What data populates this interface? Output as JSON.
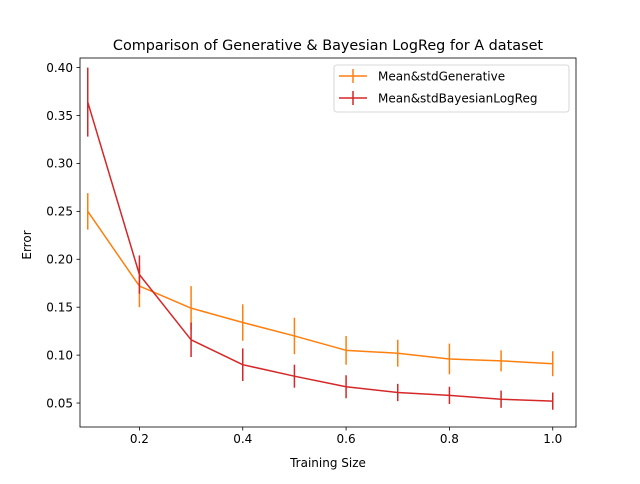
{
  "chart_data": {
    "type": "line",
    "title": "Comparison of Generative & Bayesian LogReg for A dataset",
    "xlabel": "Training Size",
    "ylabel": "Error",
    "xlim": [
      0.085,
      1.045
    ],
    "ylim": [
      0.025,
      0.41
    ],
    "x_ticks": [
      0.2,
      0.4,
      0.6,
      0.8,
      1.0
    ],
    "x_tick_labels": [
      "0.2",
      "0.4",
      "0.6",
      "0.8",
      "1.0"
    ],
    "y_ticks": [
      0.05,
      0.1,
      0.15,
      0.2,
      0.25,
      0.3,
      0.35,
      0.4
    ],
    "y_tick_labels": [
      "0.05",
      "0.10",
      "0.15",
      "0.20",
      "0.25",
      "0.30",
      "0.35",
      "0.40"
    ],
    "grid": false,
    "legend_position": "top-right",
    "x": [
      0.1,
      0.2,
      0.3,
      0.4,
      0.5,
      0.6,
      0.7,
      0.8,
      0.9,
      1.0
    ],
    "series": [
      {
        "name": "Mean&stdGenerative",
        "color": "#ff7f0e",
        "values": [
          0.25,
          0.172,
          0.149,
          0.134,
          0.12,
          0.105,
          0.102,
          0.096,
          0.094,
          0.091
        ],
        "errors": [
          0.019,
          0.022,
          0.023,
          0.019,
          0.019,
          0.015,
          0.014,
          0.016,
          0.011,
          0.013
        ]
      },
      {
        "name": "Mean&stdBayesianLogReg",
        "color": "#d62728",
        "values": [
          0.364,
          0.184,
          0.116,
          0.09,
          0.078,
          0.067,
          0.061,
          0.058,
          0.054,
          0.052
        ],
        "errors": [
          0.036,
          0.02,
          0.018,
          0.017,
          0.012,
          0.012,
          0.009,
          0.009,
          0.009,
          0.009
        ]
      }
    ]
  }
}
